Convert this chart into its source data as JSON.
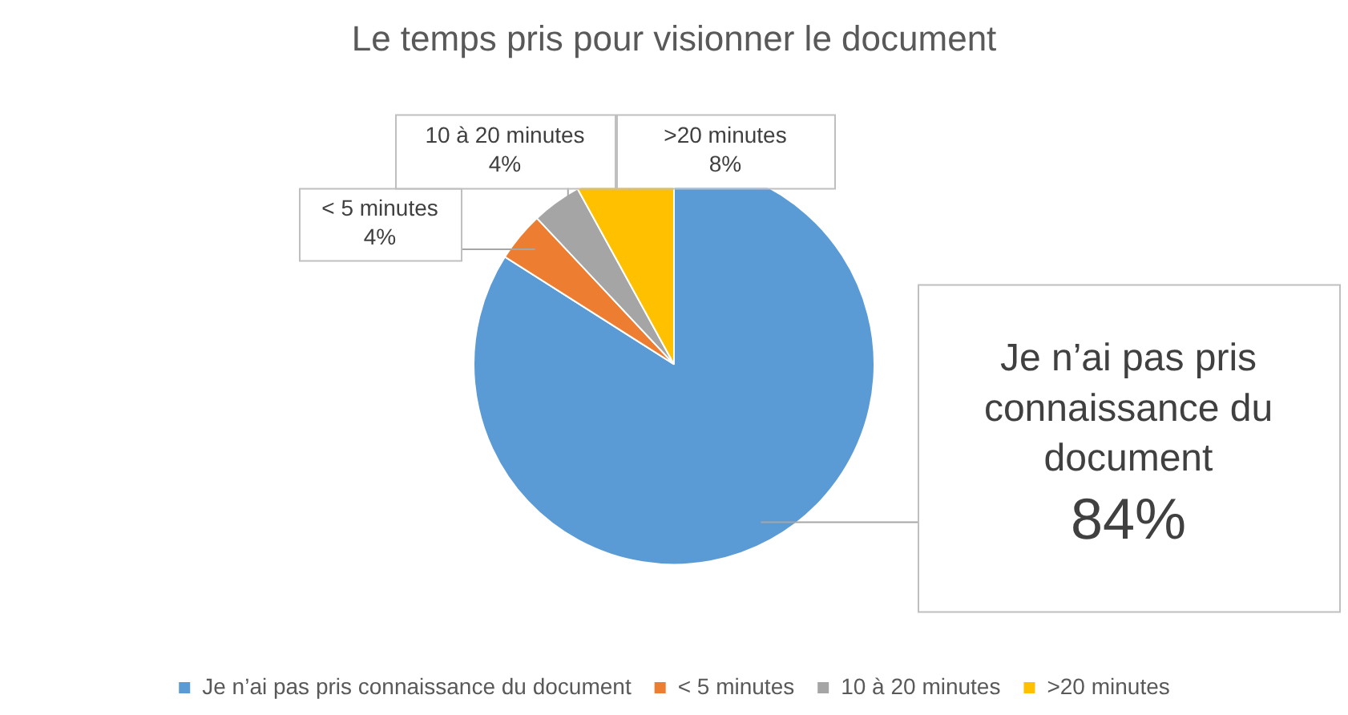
{
  "chart_data": {
    "type": "pie",
    "title": "Le temps pris pour visionner le document",
    "categories": [
      "Je n’ai pas pris connaissance du document",
      "< 5 minutes",
      "10 à 20 minutes",
      ">20 minutes"
    ],
    "values": [
      84,
      4,
      4,
      8
    ],
    "value_labels": [
      "84%",
      "4%",
      "4%",
      "8%"
    ],
    "colors": [
      "#5b9bd5",
      "#ed7d31",
      "#a5a5a5",
      "#ffc000"
    ],
    "legend": "bottom"
  }
}
